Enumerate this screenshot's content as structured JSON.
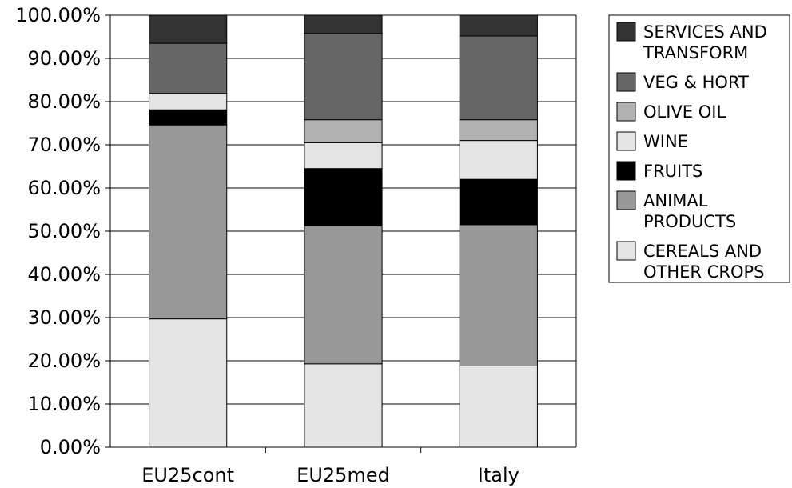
{
  "chart_data": {
    "type": "bar",
    "stacked": true,
    "title": "",
    "xlabel": "",
    "ylabel": "",
    "categories": [
      "EU25cont",
      "EU25med",
      "Italy"
    ],
    "ylim": [
      0,
      100
    ],
    "yticks": [
      "0.00%",
      "10.00%",
      "20.00%",
      "30.00%",
      "40.00%",
      "50.00%",
      "60.00%",
      "70.00%",
      "80.00%",
      "90.00%",
      "100.00%"
    ],
    "grid": true,
    "legend_position": "right",
    "series": [
      {
        "name": "CEREALS AND OTHER CROPS",
        "legend_lines": [
          "CEREALS AND",
          "OTHER CROPS"
        ],
        "color": "#e5e5e5",
        "values": [
          29.7,
          19.3,
          18.8
        ]
      },
      {
        "name": "ANIMAL PRODUCTS",
        "legend_lines": [
          "ANIMAL",
          "PRODUCTS"
        ],
        "color": "#999999",
        "values": [
          44.9,
          31.9,
          32.7
        ]
      },
      {
        "name": "FRUITS",
        "legend_lines": [
          "FRUITS"
        ],
        "color": "#000000",
        "values": [
          3.5,
          13.3,
          10.5
        ]
      },
      {
        "name": "WINE",
        "legend_lines": [
          "WINE"
        ],
        "color": "#e5e5e5",
        "values": [
          3.8,
          6.0,
          9.0
        ]
      },
      {
        "name": "OLIVE OIL",
        "legend_lines": [
          "OLIVE OIL"
        ],
        "color": "#b2b2b2",
        "values": [
          0.0,
          5.3,
          4.8
        ]
      },
      {
        "name": "VEG & HORT",
        "legend_lines": [
          "VEG & HORT"
        ],
        "color": "#666666",
        "values": [
          11.6,
          20.0,
          19.4
        ]
      },
      {
        "name": "SERVICES AND TRANSFORM",
        "legend_lines": [
          "SERVICES AND",
          "TRANSFORM"
        ],
        "color": "#333333",
        "values": [
          6.5,
          4.2,
          4.8
        ]
      }
    ]
  }
}
